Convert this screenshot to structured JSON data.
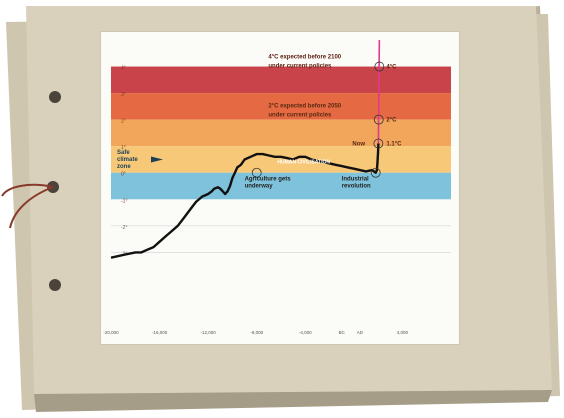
{
  "colors": {
    "band_4c": "#c9434a",
    "band_3c": "#e56a44",
    "band_2c": "#f2a65c",
    "band_1c": "#f6c878",
    "band_safe": "#7fc2db",
    "paper": "#d9d1bc",
    "paper_shadow": "#9e9582",
    "projection_line": "#e03a8c",
    "temperature_line": "#111111"
  },
  "chart_data": {
    "type": "line",
    "title": "",
    "xlabel": "",
    "ylabel": "",
    "xlim": [
      -20000,
      8000
    ],
    "ylim": [
      -6,
      5
    ],
    "x_ticks": [
      "-20,000",
      "-16,000",
      "-12,000",
      "-8,000",
      "-4,000",
      "BC",
      "AD",
      "4,000"
    ],
    "y_ticks": [
      "4°",
      "3°",
      "2°",
      "1°",
      "0°",
      "-1°",
      "-2°",
      "-3°"
    ],
    "series": [
      {
        "x": [
          -20000,
          -19000,
          -18000,
          -17500,
          -17000,
          -16500,
          -16000,
          -15500,
          -15000,
          -14500,
          -14000,
          -13500,
          -13000,
          -12500,
          -12000,
          -11700,
          -11500,
          -11200,
          -11000,
          -10800,
          -10600,
          -10400,
          -10200,
          -10000,
          -9800,
          -9600,
          -9300,
          -9000,
          -8500,
          -8000,
          -7500,
          -7000,
          -6500,
          -6000,
          -5500,
          -5000,
          -4500,
          -4000,
          -3500,
          -3000,
          -2500,
          -2000,
          -1500,
          -1000,
          -500,
          0,
          500,
          1000,
          1500,
          1800,
          1900,
          1950,
          2000,
          2020
        ],
        "y": [
          -3.2,
          -3.1,
          -3.0,
          -3.0,
          -2.9,
          -2.8,
          -2.6,
          -2.4,
          -2.2,
          -2.0,
          -1.7,
          -1.4,
          -1.1,
          -0.9,
          -0.8,
          -0.7,
          -0.6,
          -0.55,
          -0.6,
          -0.7,
          -0.8,
          -0.7,
          -0.5,
          -0.2,
          0.0,
          0.2,
          0.3,
          0.5,
          0.6,
          0.7,
          0.7,
          0.65,
          0.6,
          0.6,
          0.55,
          0.5,
          0.6,
          0.6,
          0.5,
          0.45,
          0.4,
          0.35,
          0.3,
          0.25,
          0.2,
          0.15,
          0.1,
          0.05,
          0.1,
          0.0,
          0.1,
          0.4,
          0.8,
          1.1
        ]
      },
      {
        "x": [
          2020,
          2100
        ],
        "y": [
          1.1,
          5.0
        ]
      }
    ],
    "bands": [
      {
        "from": 3,
        "to": 4
      },
      {
        "from": 2,
        "to": 3
      },
      {
        "from": 1,
        "to": 2
      },
      {
        "from": 0,
        "to": 1
      },
      {
        "from": -1,
        "to": 0
      }
    ],
    "markers": [
      {
        "x": -8000,
        "y": 0.0
      },
      {
        "x": 1800,
        "y": 0.0
      },
      {
        "x": 2020,
        "y": 1.1
      },
      {
        "x": 2050,
        "y": 2.0
      },
      {
        "x": 2100,
        "y": 4.0
      }
    ],
    "annotations": {
      "four_c": "4°C expected before 2100\nunder current policies",
      "four_c_label": "4°C",
      "two_c": "2°C expected before 2050\nunder current policies",
      "two_c_label": "2°C",
      "now": "Now",
      "now_label": "1.1°C",
      "safe_zone": "Safe\nclimate\nzone",
      "agriculture": "Agriculture gets\nunderway",
      "industrial": "Industrial\nrevolution",
      "civilization": "HUMAN CIVILISATION"
    },
    "grid": true
  }
}
